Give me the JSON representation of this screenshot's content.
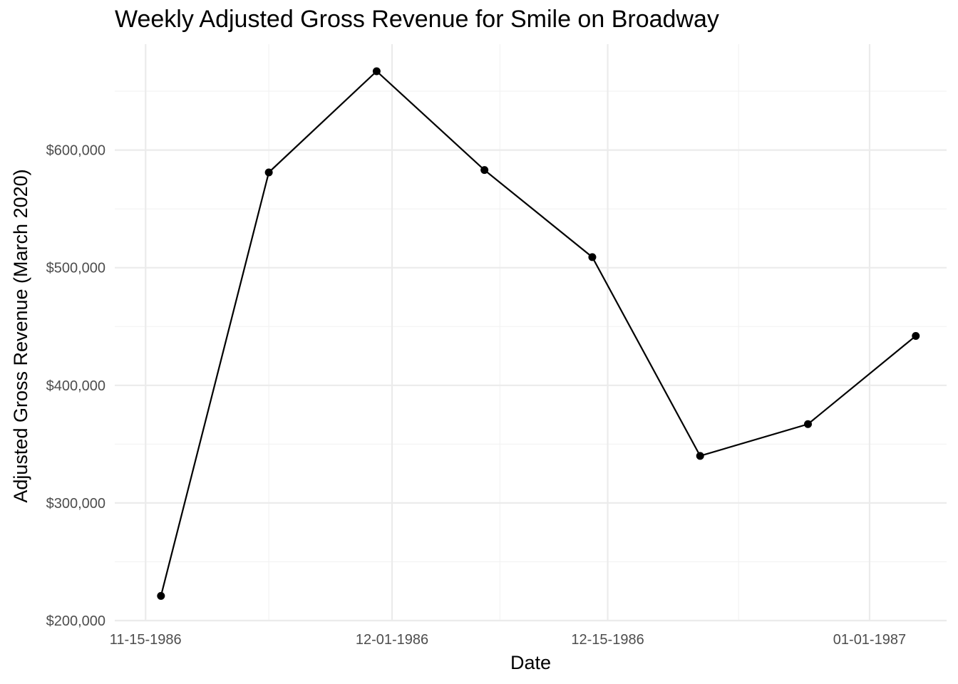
{
  "chart_data": {
    "type": "line",
    "title": "Weekly Adjusted Gross Revenue for Smile on Broadway",
    "xlabel": "Date",
    "ylabel": "Adjusted Gross Revenue (March 2020)",
    "x_tick_labels": [
      {
        "date": "1986-11-15",
        "label": "11-15-1986"
      },
      {
        "date": "1986-12-01",
        "label": "12-01-1986"
      },
      {
        "date": "1986-12-15",
        "label": "12-15-1986"
      },
      {
        "date": "1987-01-01",
        "label": "01-01-1987"
      }
    ],
    "y_tick_labels": [
      {
        "value": 200000,
        "label": "$200,000"
      },
      {
        "value": 300000,
        "label": "$300,000"
      },
      {
        "value": 400000,
        "label": "$400,000"
      },
      {
        "value": 500000,
        "label": "$500,000"
      },
      {
        "value": 600000,
        "label": "$600,000"
      }
    ],
    "xlim": [
      "1986-11-13",
      "1987-01-06"
    ],
    "ylim": [
      200000,
      690000
    ],
    "grid": true,
    "series": [
      {
        "x": [
          "1986-11-16",
          "1986-11-23",
          "1986-11-30",
          "1986-12-07",
          "1986-12-14",
          "1986-12-21",
          "1986-12-28",
          "1987-01-04"
        ],
        "values": [
          221000,
          581000,
          667000,
          583000,
          509000,
          340000,
          367000,
          442000
        ]
      }
    ]
  }
}
